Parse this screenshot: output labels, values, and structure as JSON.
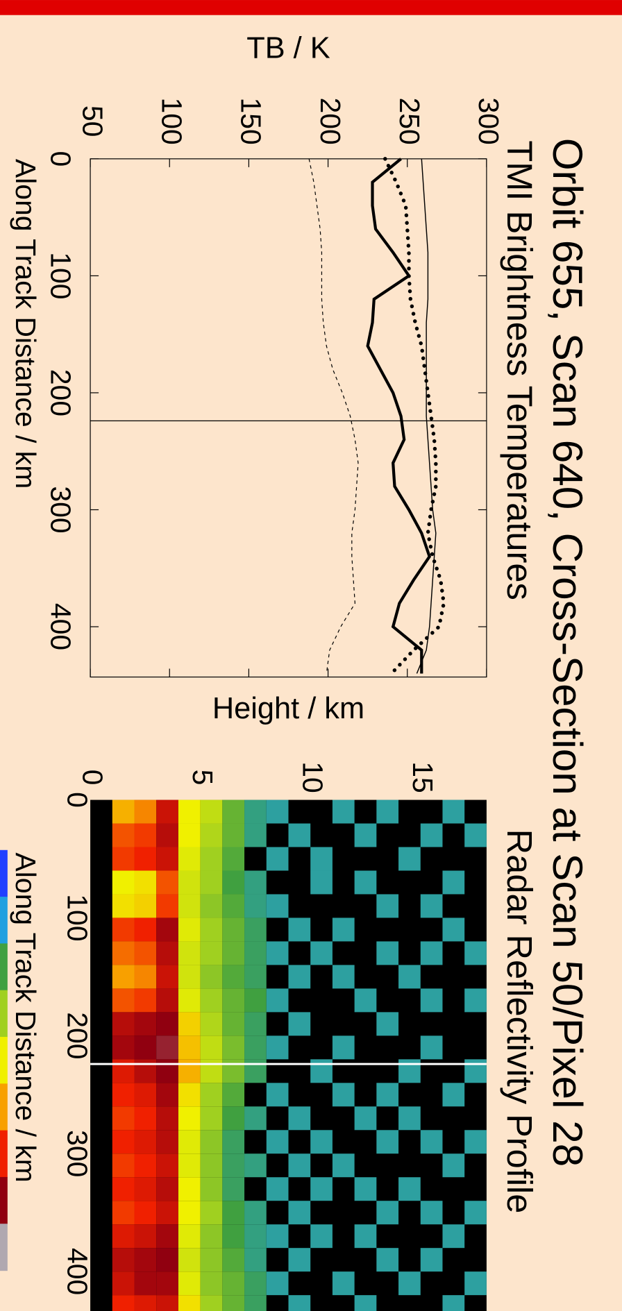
{
  "title": "Orbit 655, Scan 640, Cross-Section at Scan 50/Pixel 28",
  "chart_data": [
    {
      "type": "line",
      "title": "TMI Brightness Temperatures",
      "xlabel": "Along Track Distance / km",
      "ylabel": "TB / K",
      "x": [
        0,
        20,
        40,
        60,
        80,
        100,
        120,
        140,
        160,
        180,
        200,
        220,
        240,
        260,
        280,
        300,
        320,
        340,
        360,
        380,
        400,
        420,
        440
      ],
      "series": [
        {
          "color": "#000000",
          "style": "thick-solid",
          "values": [
            246,
            228,
            228,
            230,
            241,
            251,
            229,
            228,
            225,
            233,
            241,
            246,
            248,
            241,
            242,
            251,
            259,
            264,
            254,
            245,
            241,
            259,
            259
          ]
        },
        {
          "color": "#000000",
          "style": "thick-dotted",
          "values": [
            236,
            243,
            249,
            250,
            251,
            251,
            252,
            255,
            259,
            261,
            263,
            265,
            267,
            268,
            268,
            265,
            263,
            266,
            271,
            273,
            270,
            254,
            240
          ]
        },
        {
          "color": "#000000",
          "style": "thin-solid",
          "values": [
            259,
            260,
            261,
            262,
            263,
            263,
            263,
            262,
            262,
            262,
            262,
            262,
            263,
            264,
            265,
            266,
            268,
            267,
            266,
            265,
            264,
            262,
            256
          ]
        },
        {
          "color": "#000000",
          "style": "thin-dashed",
          "values": [
            188,
            191,
            193,
            195,
            196,
            196,
            196,
            197,
            199,
            203,
            209,
            214,
            217,
            219,
            218,
            217,
            215,
            215,
            216,
            217,
            208,
            201,
            199
          ]
        }
      ],
      "marker_x": 224,
      "xlim": [
        0,
        443
      ],
      "xticks": [
        0,
        100,
        200,
        300,
        400
      ],
      "ylim": [
        50,
        300
      ],
      "yticks": [
        50,
        100,
        150,
        200,
        250,
        300
      ]
    },
    {
      "type": "heatmap",
      "title": "Radar Reflectivity Profile",
      "xlabel": "Along Track Distance / km",
      "ylabel": "Height / km",
      "x_edges": [
        0,
        20,
        40,
        60,
        80,
        100,
        120,
        140,
        160,
        180,
        200,
        220,
        240,
        260,
        280,
        300,
        320,
        340,
        360,
        380,
        400,
        420,
        440
      ],
      "y_edges": [
        0,
        1,
        2,
        3,
        4,
        5,
        6,
        7,
        8,
        9,
        10,
        11,
        12,
        13,
        14,
        15,
        16,
        17,
        18
      ],
      "z": [
        [
          null,
          36,
          38,
          44,
          32,
          29,
          24,
          20,
          19,
          null,
          null,
          19,
          null,
          19,
          null,
          null,
          19,
          null
        ],
        [
          null,
          40,
          41,
          45,
          32,
          28,
          24,
          20,
          null,
          19,
          null,
          null,
          19,
          null,
          null,
          19,
          null,
          19
        ],
        [
          null,
          41,
          42,
          44,
          31,
          27,
          23,
          null,
          19,
          null,
          19,
          null,
          null,
          null,
          19,
          null,
          null,
          null
        ],
        [
          null,
          32,
          33,
          40,
          30,
          27,
          22,
          20,
          null,
          null,
          19,
          null,
          19,
          null,
          null,
          null,
          19,
          null
        ],
        [
          null,
          33,
          34,
          41,
          30,
          26,
          23,
          20,
          19,
          null,
          null,
          null,
          null,
          19,
          null,
          19,
          null,
          null
        ],
        [
          null,
          41,
          42,
          46,
          31,
          27,
          24,
          21,
          null,
          19,
          null,
          19,
          null,
          null,
          null,
          null,
          19,
          null
        ],
        [
          null,
          39,
          40,
          45,
          30,
          27,
          24,
          21,
          19,
          null,
          19,
          null,
          null,
          19,
          null,
          19,
          null,
          19
        ],
        [
          null,
          37,
          38,
          44,
          30,
          26,
          23,
          21,
          null,
          19,
          null,
          19,
          null,
          null,
          19,
          null,
          null,
          null
        ],
        [
          null,
          40,
          41,
          45,
          31,
          27,
          24,
          22,
          19,
          null,
          null,
          null,
          19,
          null,
          null,
          19,
          null,
          19
        ],
        [
          null,
          45,
          46,
          47,
          34,
          28,
          24,
          21,
          null,
          19,
          null,
          null,
          null,
          19,
          null,
          null,
          null,
          null
        ],
        [
          null,
          46,
          47,
          48,
          35,
          29,
          25,
          21,
          19,
          null,
          null,
          19,
          null,
          null,
          null,
          19,
          null,
          null
        ],
        [
          null,
          43,
          45,
          47,
          36,
          29,
          25,
          21,
          null,
          null,
          19,
          null,
          null,
          null,
          19,
          null,
          null,
          19
        ],
        [
          null,
          42,
          43,
          46,
          33,
          27,
          23,
          null,
          19,
          null,
          null,
          19,
          null,
          19,
          null,
          null,
          19,
          null
        ],
        [
          null,
          41,
          42,
          45,
          32,
          27,
          22,
          20,
          null,
          19,
          null,
          null,
          19,
          null,
          19,
          null,
          null,
          null
        ],
        [
          null,
          42,
          43,
          45,
          31,
          26,
          21,
          null,
          19,
          null,
          19,
          null,
          null,
          19,
          null,
          19,
          null,
          19
        ],
        [
          null,
          41,
          42,
          44,
          31,
          26,
          21,
          20,
          null,
          19,
          null,
          19,
          null,
          null,
          null,
          null,
          19,
          null
        ],
        [
          null,
          42,
          43,
          45,
          32,
          26,
          21,
          null,
          19,
          null,
          19,
          null,
          19,
          null,
          19,
          null,
          null,
          null
        ],
        [
          null,
          41,
          42,
          44,
          32,
          27,
          22,
          20,
          null,
          19,
          null,
          null,
          null,
          19,
          null,
          19,
          null,
          19
        ],
        [
          null,
          43,
          44,
          46,
          31,
          26,
          22,
          20,
          19,
          null,
          19,
          null,
          19,
          null,
          null,
          null,
          19,
          null
        ],
        [
          null,
          45,
          46,
          47,
          30,
          26,
          23,
          20,
          null,
          19,
          null,
          null,
          null,
          19,
          null,
          19,
          null,
          null
        ],
        [
          null,
          44,
          46,
          46,
          31,
          26,
          24,
          21,
          19,
          null,
          null,
          19,
          null,
          null,
          19,
          null,
          null,
          19
        ],
        [
          null,
          42,
          43,
          44,
          33,
          27,
          24,
          21,
          null,
          19,
          null,
          null,
          19,
          null,
          null,
          null,
          19,
          null
        ]
      ],
      "zlim": [
        12,
        52
      ],
      "colors": [
        "#2040ff",
        "#20a0e0",
        "#40a040",
        "#a0d020",
        "#f0f000",
        "#f8a000",
        "#f02000",
        "#900010",
        "#b0a8b0"
      ],
      "marker_x": 224,
      "xlim": [
        0,
        443
      ],
      "xticks": [
        0,
        100,
        200,
        300,
        400
      ],
      "ylim": [
        0,
        18
      ],
      "yticks": [
        0,
        5,
        10,
        15
      ]
    }
  ]
}
